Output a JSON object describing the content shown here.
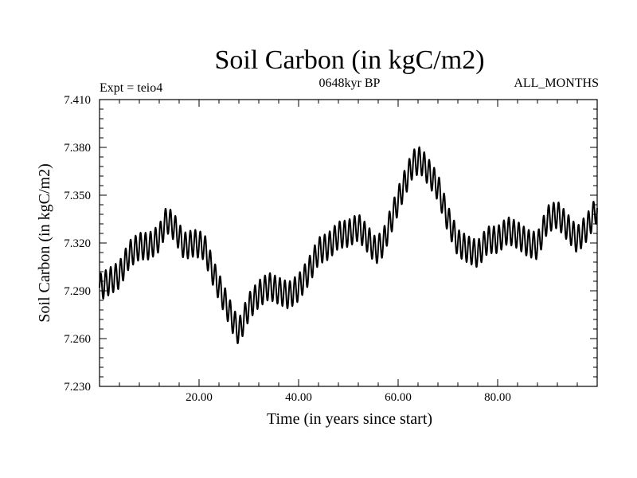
{
  "chart_data": {
    "type": "line",
    "title": "Soil Carbon (in kgC/m2)",
    "subtitle_left": "Expt = teio4",
    "subtitle_center": "0648kyr BP",
    "subtitle_right": "ALL_MONTHS",
    "xlabel": "Time (in years since start)",
    "ylabel": "Soil Carbon (in kgC/m2)",
    "xlim": [
      0,
      100
    ],
    "ylim": [
      7.23,
      7.41
    ],
    "xticks": [
      {
        "value": 20,
        "label": "20.00"
      },
      {
        "value": 40,
        "label": "40.00"
      },
      {
        "value": 60,
        "label": "60.00"
      },
      {
        "value": 80,
        "label": "80.00"
      }
    ],
    "yticks": [
      {
        "value": 7.23,
        "label": "7.230"
      },
      {
        "value": 7.26,
        "label": "7.260"
      },
      {
        "value": 7.29,
        "label": "7.290"
      },
      {
        "value": 7.32,
        "label": "7.320"
      },
      {
        "value": 7.35,
        "label": "7.350"
      },
      {
        "value": 7.38,
        "label": "7.380"
      },
      {
        "value": 7.41,
        "label": "7.410"
      }
    ],
    "seasonal_amplitude": 0.0085,
    "seasonal_period_years": 1,
    "series": [
      {
        "name": "Soil Carbon",
        "color": "#000000",
        "x": [
          0,
          2,
          4,
          6,
          8,
          10,
          12,
          13.5,
          15,
          17,
          19,
          21,
          23,
          25,
          27,
          28,
          30,
          32,
          34,
          36,
          38,
          40,
          42,
          44,
          46,
          48,
          50,
          52,
          54,
          55.5,
          57,
          59,
          61,
          63,
          64.5,
          66,
          68,
          70,
          72,
          74,
          76,
          78,
          80,
          82,
          84,
          86,
          88,
          90,
          92,
          94,
          96,
          98,
          100
        ],
        "y": [
          7.292,
          7.296,
          7.3,
          7.313,
          7.318,
          7.318,
          7.323,
          7.335,
          7.33,
          7.318,
          7.32,
          7.318,
          7.3,
          7.285,
          7.27,
          7.264,
          7.28,
          7.288,
          7.293,
          7.29,
          7.287,
          7.292,
          7.302,
          7.315,
          7.318,
          7.325,
          7.326,
          7.33,
          7.322,
          7.315,
          7.32,
          7.338,
          7.355,
          7.37,
          7.372,
          7.365,
          7.355,
          7.335,
          7.32,
          7.316,
          7.313,
          7.322,
          7.322,
          7.328,
          7.325,
          7.32,
          7.318,
          7.335,
          7.338,
          7.33,
          7.322,
          7.33,
          7.342
        ]
      }
    ]
  }
}
